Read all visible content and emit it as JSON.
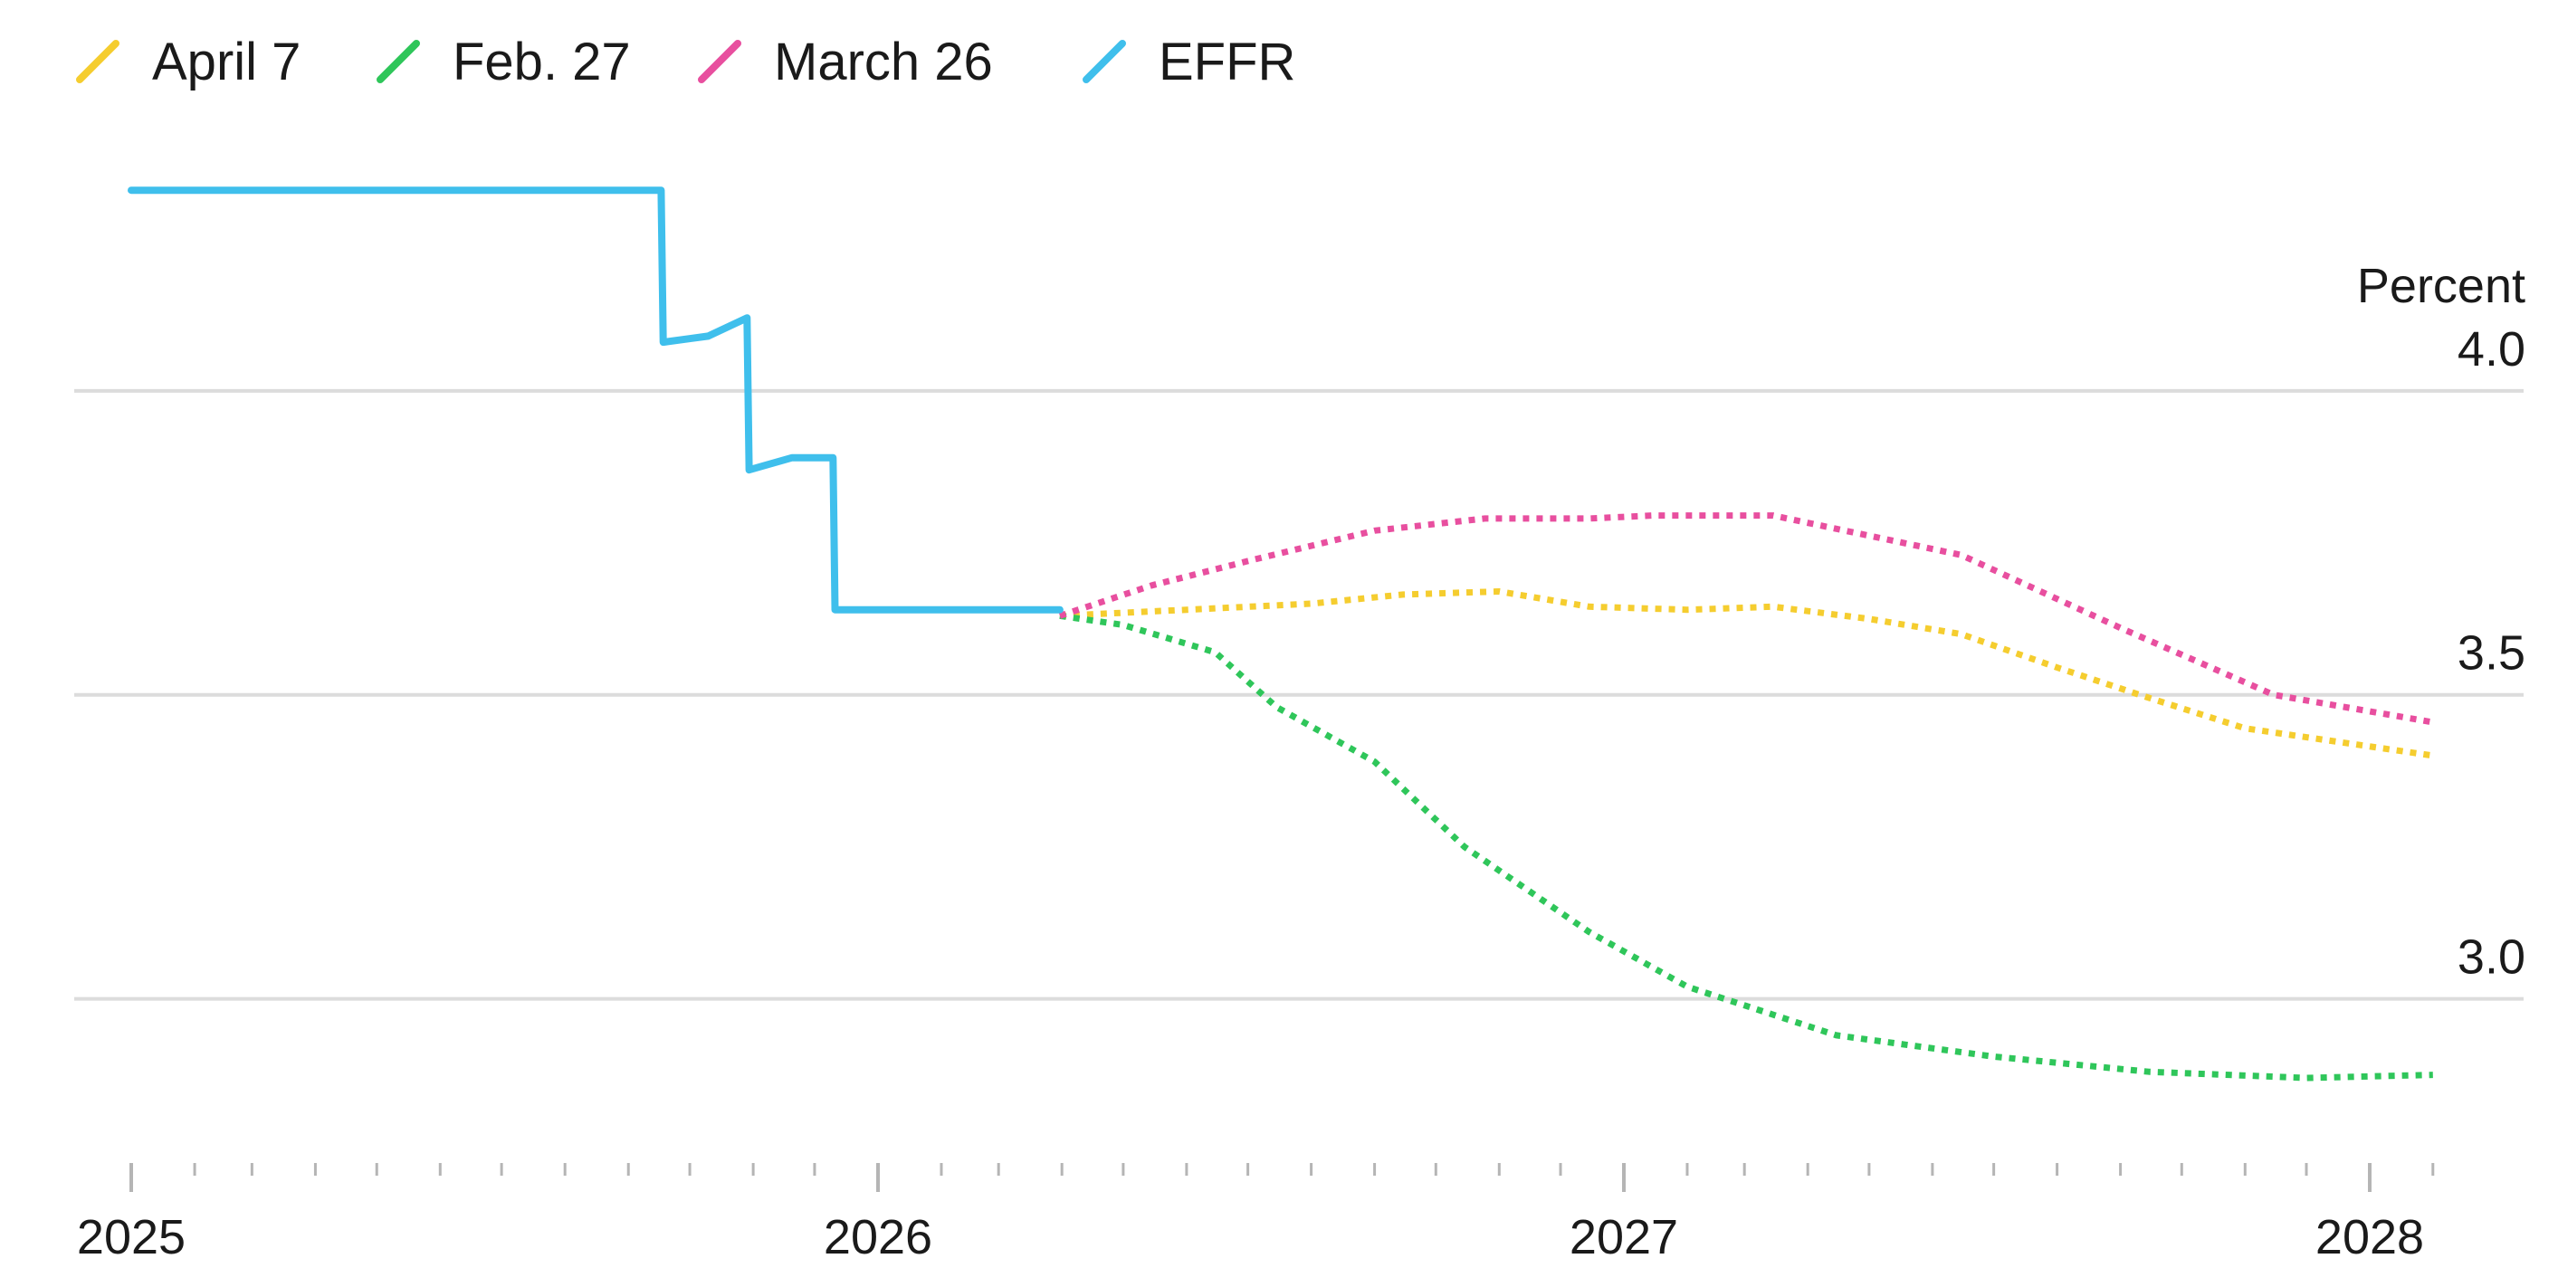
{
  "chart_data": {
    "type": "line",
    "title": "",
    "xlabel": "",
    "ylabel": "Percent",
    "ylim": [
      2.73,
      4.36
    ],
    "xlim": [
      "2025-01-01",
      "2028-02-15"
    ],
    "yticks": [
      3.0,
      3.5,
      4.0
    ],
    "ytick_labels": [
      "3.0",
      "3.5",
      "4.0"
    ],
    "xticks": [
      "2025",
      "2026",
      "2027",
      "2028"
    ],
    "grid": true,
    "legend_position": "top-left",
    "series": [
      {
        "name": "April 7",
        "color": "#f5cd2f",
        "style": "dotted",
        "points": [
          [
            "2026-03-31",
            3.63
          ],
          [
            "2026-06-01",
            3.64
          ],
          [
            "2026-08-01",
            3.65
          ],
          [
            "2026-09-15",
            3.665
          ],
          [
            "2026-11-01",
            3.67
          ],
          [
            "2026-12-15",
            3.645
          ],
          [
            "2027-02-01",
            3.64
          ],
          [
            "2027-03-15",
            3.645
          ],
          [
            "2027-05-01",
            3.625
          ],
          [
            "2027-06-15",
            3.6
          ],
          [
            "2027-08-01",
            3.545
          ],
          [
            "2027-09-15",
            3.495
          ],
          [
            "2027-11-01",
            3.445
          ],
          [
            "2028-02-01",
            3.4
          ]
        ]
      },
      {
        "name": "Feb. 27",
        "color": "#2fc65a",
        "style": "dotted",
        "points": [
          [
            "2026-03-31",
            3.63
          ],
          [
            "2026-05-01",
            3.615
          ],
          [
            "2026-06-15",
            3.57
          ],
          [
            "2026-07-15",
            3.48
          ],
          [
            "2026-09-01",
            3.39
          ],
          [
            "2026-10-15",
            3.25
          ],
          [
            "2026-12-15",
            3.11
          ],
          [
            "2027-02-01",
            3.02
          ],
          [
            "2027-04-15",
            2.94
          ],
          [
            "2027-07-01",
            2.905
          ],
          [
            "2027-09-15",
            2.88
          ],
          [
            "2027-12-01",
            2.87
          ],
          [
            "2028-02-01",
            2.875
          ]
        ]
      },
      {
        "name": "March 26",
        "color": "#e84f9f",
        "style": "dotted",
        "points": [
          [
            "2026-03-31",
            3.63
          ],
          [
            "2026-05-15",
            3.68
          ],
          [
            "2026-07-01",
            3.72
          ],
          [
            "2026-09-01",
            3.77
          ],
          [
            "2026-10-25",
            3.79
          ],
          [
            "2026-12-15",
            3.79
          ],
          [
            "2027-01-15",
            3.795
          ],
          [
            "2027-03-15",
            3.795
          ],
          [
            "2027-06-15",
            3.73
          ],
          [
            "2027-09-01",
            3.61
          ],
          [
            "2027-11-15",
            3.5
          ],
          [
            "2028-02-01",
            3.455
          ]
        ]
      },
      {
        "name": "EFFR",
        "color": "#3fbfec",
        "style": "solid",
        "points": [
          [
            "2025-01-01",
            4.33
          ],
          [
            "2025-09-17",
            4.33
          ],
          [
            "2025-09-18",
            4.08
          ],
          [
            "2025-10-10",
            4.09
          ],
          [
            "2025-10-29",
            4.12
          ],
          [
            "2025-10-30",
            3.87
          ],
          [
            "2025-11-20",
            3.89
          ],
          [
            "2025-12-10",
            3.89
          ],
          [
            "2025-12-11",
            3.64
          ],
          [
            "2026-03-31",
            3.64
          ]
        ]
      }
    ]
  }
}
